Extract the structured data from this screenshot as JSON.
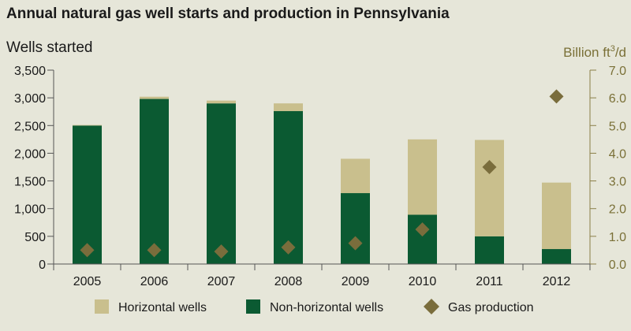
{
  "chart_data": {
    "type": "bar",
    "title": "Annual natural gas well starts and production in Pennsylvania",
    "ylabel": "Wells started",
    "y2label_prefix": "Billion ft",
    "y2label_sup": "3",
    "y2label_suffix": "/d",
    "ylim": [
      0,
      3500
    ],
    "y2lim": [
      0,
      7.0
    ],
    "yticks": [
      "0",
      "500",
      "1,000",
      "1,500",
      "2,000",
      "2,500",
      "3,000",
      "3,500"
    ],
    "y2ticks": [
      "0.0",
      "1.0",
      "2.0",
      "3.0",
      "4.0",
      "5.0",
      "6.0",
      "7.0"
    ],
    "categories": [
      "2005",
      "2006",
      "2007",
      "2008",
      "2009",
      "2010",
      "2011",
      "2012"
    ],
    "series": [
      {
        "name": "Non-horizontal wells",
        "kind": "bar",
        "axis": "left",
        "color": "#0b5a32",
        "values": [
          2500,
          2980,
          2900,
          2760,
          1280,
          890,
          500,
          270
        ]
      },
      {
        "name": "Horizontal wells",
        "kind": "bar",
        "axis": "left",
        "color": "#c9bf8d",
        "values": [
          10,
          40,
          50,
          140,
          620,
          1360,
          1740,
          1200
        ]
      },
      {
        "name": "Gas production",
        "kind": "marker",
        "axis": "right",
        "color": "#7a6d3c",
        "values": [
          0.5,
          0.5,
          0.45,
          0.6,
          0.75,
          1.25,
          3.5,
          6.05
        ]
      }
    ],
    "legend": [
      "Horizontal wells",
      "Non-horizontal wells",
      "Gas production"
    ],
    "legend_position": "bottom",
    "grid": false
  }
}
